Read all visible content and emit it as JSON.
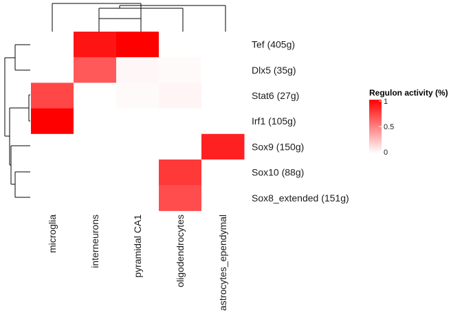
{
  "chart_data": {
    "type": "heatmap",
    "rows": [
      "Tef (405g)",
      "Dlx5 (35g)",
      "Stat6 (27g)",
      "Irf1 (105g)",
      "Sox9 (150g)",
      "Sox10 (88g)",
      "Sox8_extended (151g)"
    ],
    "columns": [
      "microglia",
      "interneurons",
      "pyramidal CA1",
      "oligodendrocytes",
      "astrocytes_ependymal"
    ],
    "values": [
      [
        0.0,
        0.92,
        1.0,
        0.0,
        0.0
      ],
      [
        0.0,
        0.65,
        0.03,
        0.02,
        0.0
      ],
      [
        0.72,
        0.0,
        0.02,
        0.04,
        0.0
      ],
      [
        1.0,
        0.0,
        0.0,
        0.0,
        0.0
      ],
      [
        0.0,
        0.0,
        0.0,
        0.0,
        0.87
      ],
      [
        0.0,
        0.0,
        0.0,
        0.78,
        0.0
      ],
      [
        0.0,
        0.0,
        0.0,
        0.7,
        0.0
      ]
    ],
    "legend": {
      "title": "Regulon activity (%)",
      "ticks": [
        "1",
        "0.5",
        "0"
      ],
      "low_color": "#ffffff",
      "high_color": "#ff0000",
      "placement": "right"
    },
    "row_dendrogram": true,
    "column_dendrogram": true
  }
}
